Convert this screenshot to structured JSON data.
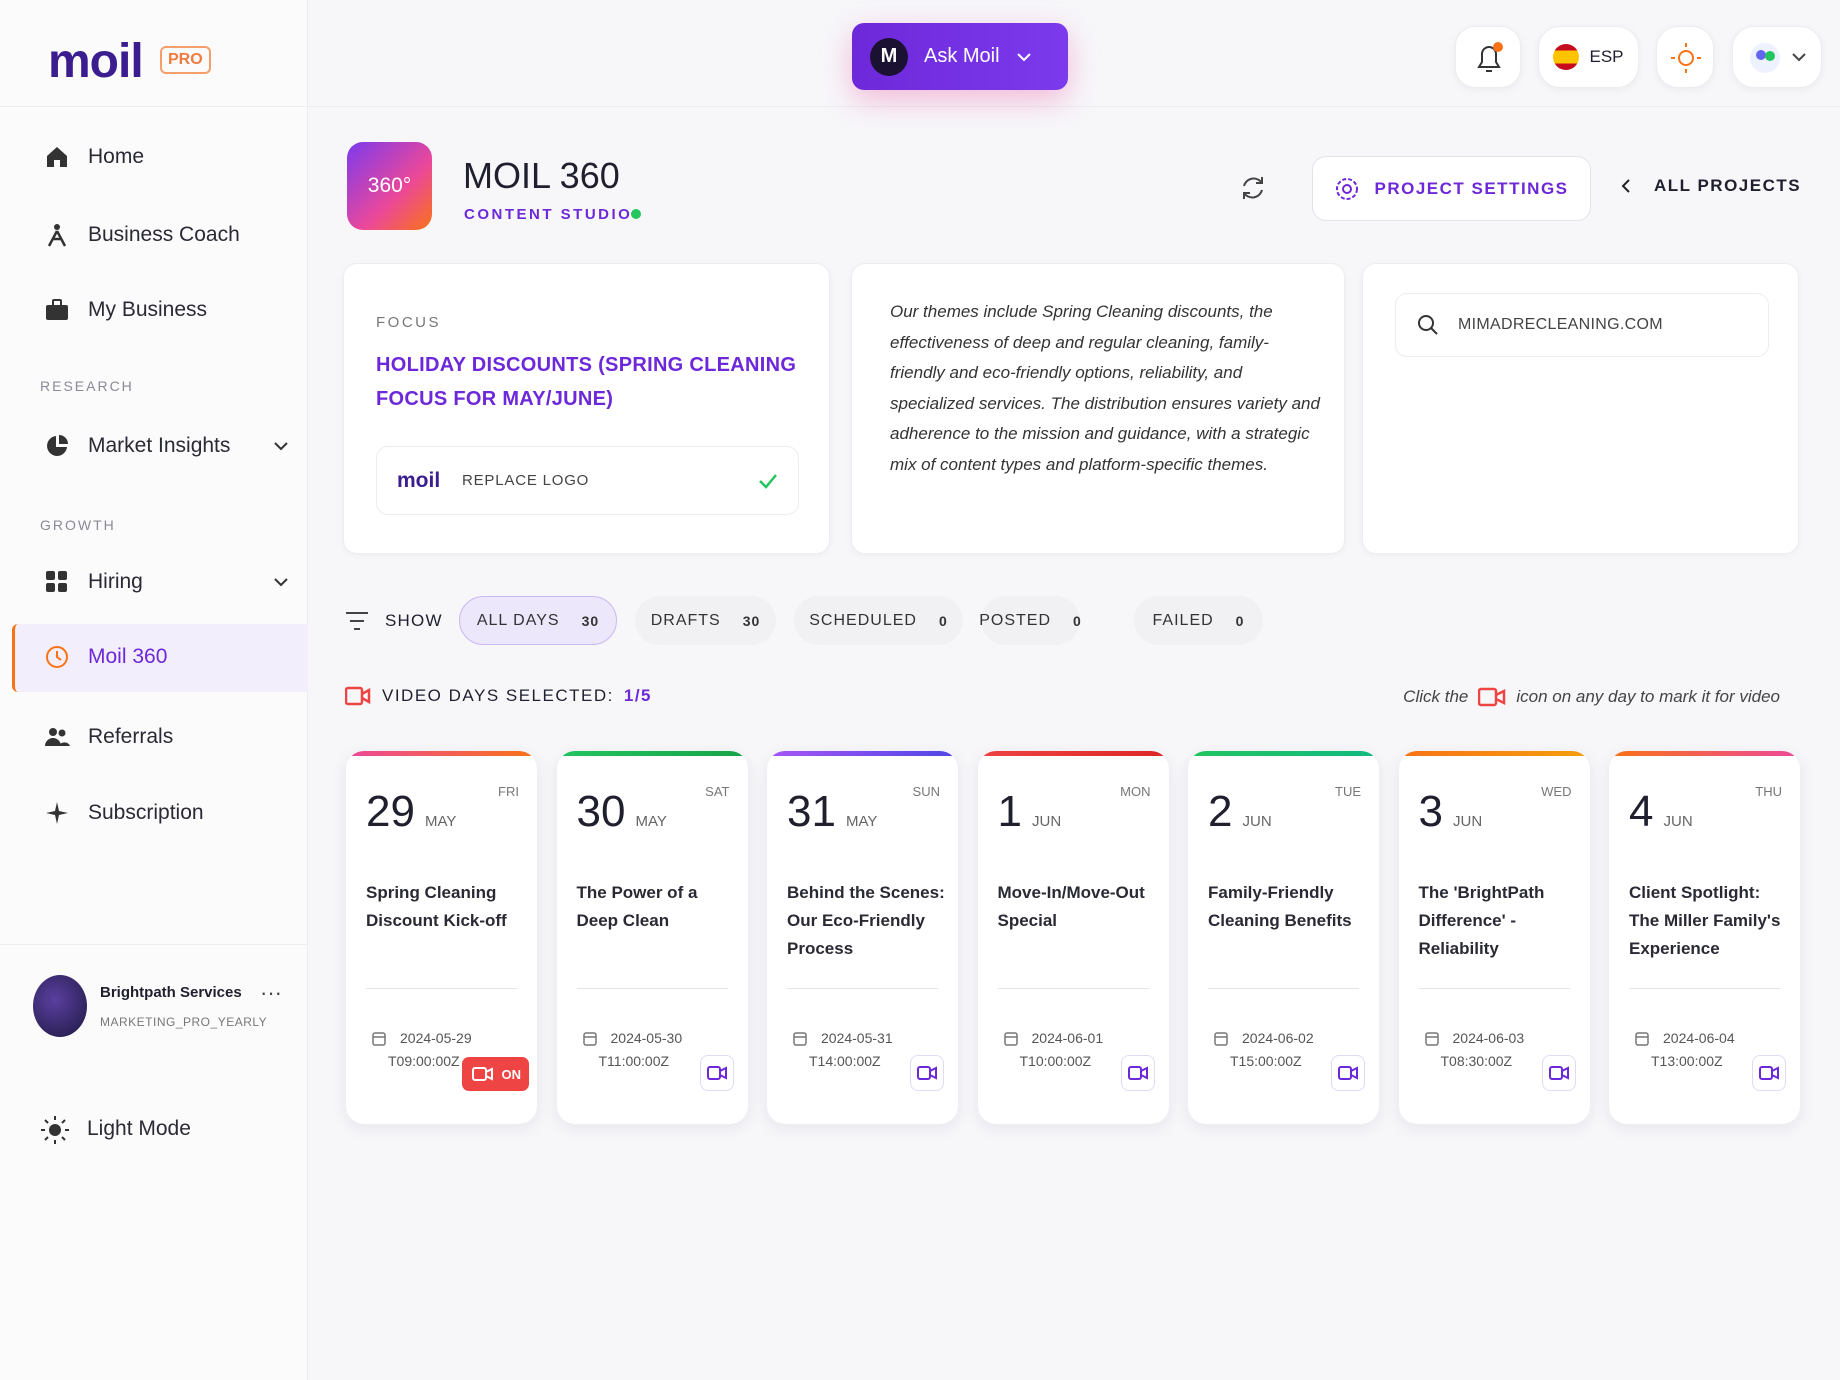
{
  "sidebar": {
    "brand": "moil",
    "badge": "PRO",
    "nav": [
      {
        "label": "Home"
      },
      {
        "label": "Business Coach"
      },
      {
        "label": "My Business"
      },
      {
        "heading": "RESEARCH"
      },
      {
        "label": "Market Insights"
      },
      {
        "heading": "GROWTH"
      },
      {
        "label": "Hiring"
      },
      {
        "label": "Moil 360"
      },
      {
        "label": "Referrals"
      },
      {
        "label": "Subscription"
      }
    ],
    "user": {
      "name": "Brightpath Services",
      "plan": "MARKETING_PRO_YEARLY"
    },
    "mode": "Light Mode"
  },
  "topbar": {
    "ask_initial": "M",
    "ask_label": "Ask Moil",
    "language": "ESP"
  },
  "project": {
    "icon": "360°",
    "title": "MOIL 360",
    "subtitle": "CONTENT STUDIO",
    "settings": "PROJECT SETTINGS",
    "back": "ALL PROJECTS"
  },
  "focus": {
    "label": "FOCUS",
    "text": "HOLIDAY DISCOUNTS (SPRING CLEANING FOCUS FOR MAY/JUNE)",
    "logo": "moil",
    "replace": "REPLACE LOGO"
  },
  "themes": "Our themes include Spring Cleaning discounts, the effectiveness of deep and regular cleaning, family-friendly and eco-friendly options, reliability, and specialized services. The distribution ensures variety and adherence to the mission and guidance, with a strategic mix of content types and platform-specific themes.",
  "website": "MIMADRECLEANING.COM",
  "filters": {
    "label": "SHOW",
    "options": [
      {
        "label": "ALL DAYS",
        "count": 30
      },
      {
        "label": "DRAFTS",
        "count": 30
      },
      {
        "label": "SCHEDULED",
        "count": 0
      },
      {
        "label": "POSTED",
        "count": 0
      },
      {
        "label": "FAILED",
        "count": 0
      }
    ]
  },
  "video": {
    "label": "VIDEO DAYS SELECTED:",
    "selected": "1/5",
    "hint_before": "Click the",
    "hint_after": "icon on any day to mark it for video"
  },
  "days": [
    {
      "day": 29,
      "month": "MAY",
      "weekday": "FRI",
      "title": "Spring Cleaning Discount Kick-off",
      "date": "2024-05-29",
      "time": "T09:00:00Z",
      "video": "ON"
    },
    {
      "day": 30,
      "month": "MAY",
      "weekday": "SAT",
      "title": "The Power of a Deep Clean",
      "date": "2024-05-30",
      "time": "T11:00:00Z"
    },
    {
      "day": 31,
      "month": "MAY",
      "weekday": "SUN",
      "title": "Behind the Scenes: Our Eco-Friendly Process",
      "date": "2024-05-31",
      "time": "T14:00:00Z"
    },
    {
      "day": 1,
      "month": "JUN",
      "weekday": "MON",
      "title": "Move-In/Move-Out Special",
      "date": "2024-06-01",
      "time": "T10:00:00Z"
    },
    {
      "day": 2,
      "month": "JUN",
      "weekday": "TUE",
      "title": "Family-Friendly Cleaning Benefits",
      "date": "2024-06-02",
      "time": "T15:00:00Z"
    },
    {
      "day": 3,
      "month": "JUN",
      "weekday": "WED",
      "title": "The 'BrightPath Difference' - Reliability",
      "date": "2024-06-03",
      "time": "T08:30:00Z"
    },
    {
      "day": 4,
      "month": "JUN",
      "weekday": "THU",
      "title": "Client Spotlight: The Miller Family's Experience",
      "date": "2024-06-04",
      "time": "T13:00:00Z"
    }
  ]
}
